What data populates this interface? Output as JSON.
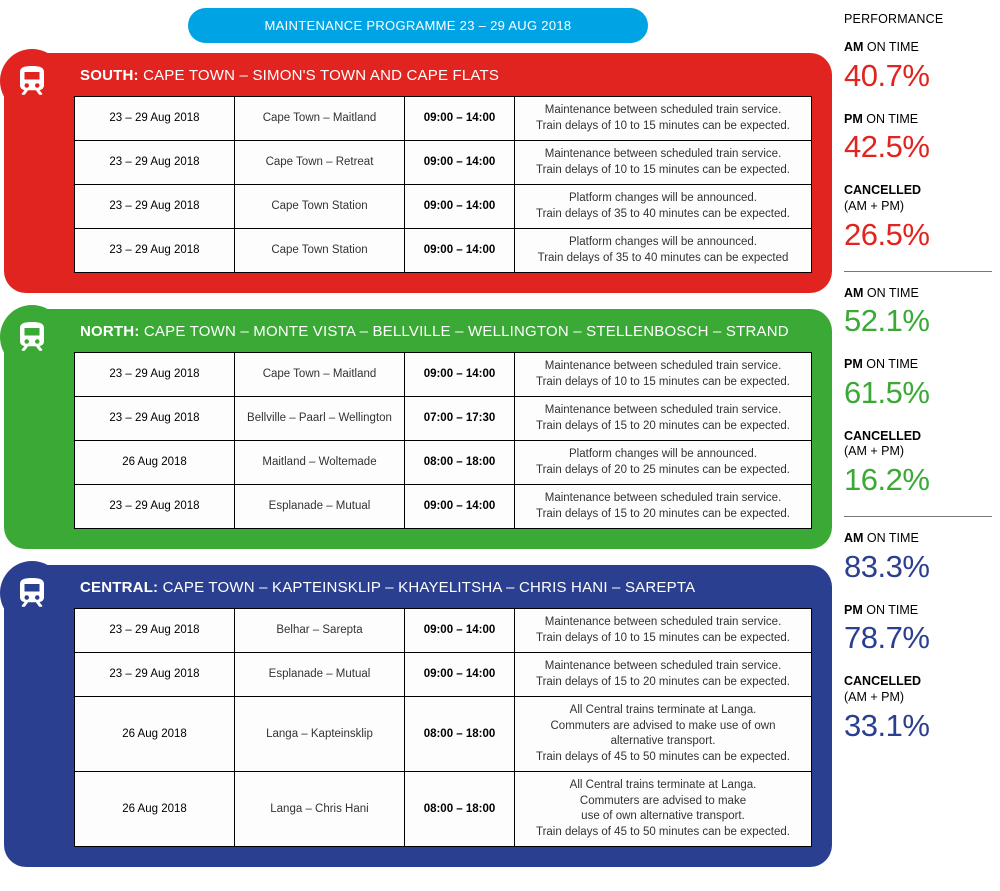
{
  "header": {
    "title": "MAINTENANCE PROGRAMME 23 – 29 AUG 2018"
  },
  "colors": {
    "header_bg": "#00a4e4",
    "south": "#e1241f",
    "north": "#3aa935",
    "central": "#2a3f8f",
    "table_bg": "#fdfdfd",
    "border": "#000000"
  },
  "lines": {
    "south": {
      "prefix": "SOUTH:",
      "title_rest": " CAPE TOWN – SIMON'S TOWN AND CAPE FLATS",
      "rows": [
        {
          "date": "23 – 29 Aug 2018",
          "route": "Cape Town – Maitland",
          "time": "09:00 – 14:00",
          "note": "Maintenance between scheduled train service.\nTrain delays of 10 to 15 minutes can be expected."
        },
        {
          "date": "23 – 29 Aug 2018",
          "route": "Cape Town – Retreat",
          "time": "09:00 – 14:00",
          "note": "Maintenance between scheduled train service.\nTrain delays of 10 to 15 minutes can be expected."
        },
        {
          "date": "23 – 29 Aug 2018",
          "route": "Cape Town Station",
          "time": "09:00 – 14:00",
          "note": "Platform changes will be announced.\nTrain delays of 35 to 40 minutes can be expected."
        },
        {
          "date": "23 – 29 Aug 2018",
          "route": "Cape Town Station",
          "time": "09:00 – 14:00",
          "note": "Platform changes will be announced.\nTrain delays of 35 to 40 minutes can be expected"
        }
      ]
    },
    "north": {
      "prefix": "NORTH:",
      "title_rest": " CAPE TOWN – MONTE VISTA – BELLVILLE – WELLINGTON – STELLENBOSCH – STRAND",
      "rows": [
        {
          "date": "23 – 29 Aug 2018",
          "route": "Cape Town – Maitland",
          "time": "09:00 – 14:00",
          "note": "Maintenance between scheduled train service.\nTrain delays of 10 to 15 minutes can be expected."
        },
        {
          "date": "23 – 29 Aug 2018",
          "route": "Bellville – Paarl – Wellington",
          "time": "07:00 – 17:30",
          "note": "Maintenance between scheduled train service.\nTrain delays of 15 to 20 minutes can be expected."
        },
        {
          "date": "26 Aug 2018",
          "route": "Maitland – Woltemade",
          "time": "08:00 – 18:00",
          "note": "Platform changes will be announced.\nTrain delays of 20 to 25 minutes can be expected."
        },
        {
          "date": "23 – 29 Aug 2018",
          "route": "Esplanade – Mutual",
          "time": "09:00 – 14:00",
          "note": "Maintenance between scheduled train service.\nTrain delays of 15 to 20 minutes can be expected."
        }
      ]
    },
    "central": {
      "prefix": "CENTRAL:",
      "title_rest": " CAPE TOWN – KAPTEINSKLIP – KHAYELITSHA – CHRIS HANI – SAREPTA",
      "rows": [
        {
          "date": "23 – 29 Aug 2018",
          "route": "Belhar – Sarepta",
          "time": "09:00 – 14:00",
          "note": "Maintenance between scheduled train service.\nTrain delays of 10 to 15 minutes can be expected."
        },
        {
          "date": "23 – 29 Aug 2018",
          "route": "Esplanade – Mutual",
          "time": "09:00 – 14:00",
          "note": "Maintenance between scheduled train service.\nTrain delays of 15 to 20 minutes can be expected."
        },
        {
          "date": "26 Aug 2018",
          "route": "Langa – Kapteinsklip",
          "time": "08:00 – 18:00",
          "note": "All Central trains terminate at Langa.\nCommuters are advised to make use of own alternative transport.\nTrain delays of 45 to 50 minutes can be expected."
        },
        {
          "date": "26 Aug 2018",
          "route": "Langa – Chris Hani",
          "time": "08:00 – 18:00",
          "note": "All Central trains terminate at Langa.\nCommuters are advised to make\nuse of own alternative transport.\nTrain delays of 45 to 50 minutes can be expected."
        }
      ]
    }
  },
  "performance": {
    "title": "PERFORMANCE",
    "groups": [
      {
        "color": "c-red",
        "stats": [
          {
            "prefix": "AM",
            "suffix": " ON TIME",
            "value": "40.7%"
          },
          {
            "prefix": "PM",
            "suffix": " ON TIME",
            "value": "42.5%"
          },
          {
            "prefix": "CANCELLED",
            "suffix": "\n(AM + PM)",
            "value": "26.5%"
          }
        ]
      },
      {
        "color": "c-green",
        "stats": [
          {
            "prefix": "AM",
            "suffix": " ON TIME",
            "value": "52.1%"
          },
          {
            "prefix": "PM",
            "suffix": " ON TIME",
            "value": "61.5%"
          },
          {
            "prefix": "CANCELLED",
            "suffix": "\n(AM + PM)",
            "value": "16.2%"
          }
        ]
      },
      {
        "color": "c-blue",
        "stats": [
          {
            "prefix": "AM",
            "suffix": " ON TIME",
            "value": "83.3%"
          },
          {
            "prefix": "PM",
            "suffix": " ON TIME",
            "value": "78.7%"
          },
          {
            "prefix": "CANCELLED",
            "suffix": "\n(AM + PM)",
            "value": "33.1%"
          }
        ]
      }
    ]
  }
}
